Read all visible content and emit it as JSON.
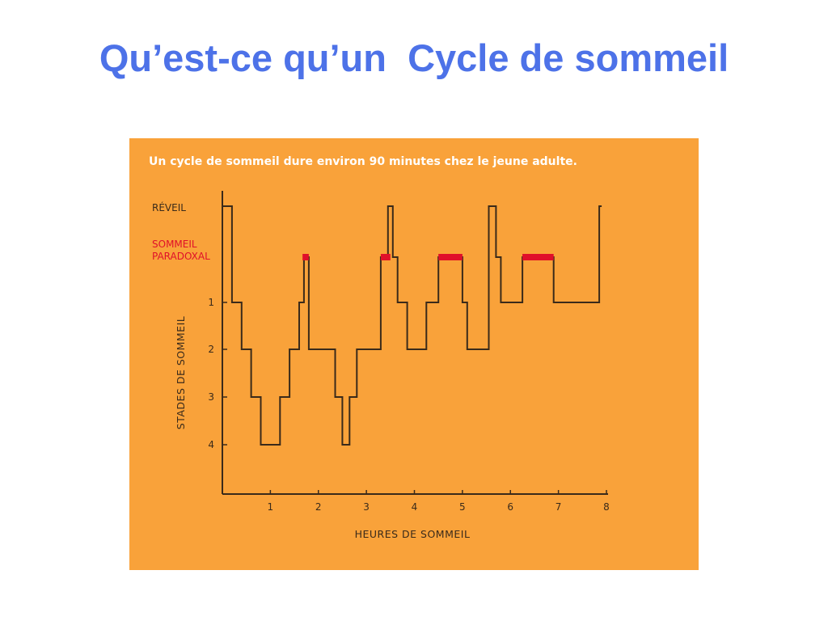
{
  "slide": {
    "title": "Qu’est-ce qu’un  Cycle de sommeil"
  },
  "colors": {
    "title": "#4d72e8",
    "panel_background": "#f9a23a",
    "line": "#3a2a1a",
    "paradoxical": "#e0102a"
  },
  "chart_data": {
    "type": "line",
    "caption": "Un cycle de sommeil dure environ 90 minutes chez le jeune adulte.",
    "xlabel": "HEURES DE SOMMEIL",
    "ylabel": "STADES DE SOMMEIL",
    "xlim": [
      0,
      8
    ],
    "x_ticks": [
      "1",
      "2",
      "3",
      "4",
      "5",
      "6",
      "7",
      "8"
    ],
    "y_levels": [
      {
        "key": "W",
        "label": "RÉVEIL"
      },
      {
        "key": "P",
        "label": "SOMMEIL PARADOXAL"
      },
      {
        "key": "1",
        "label": "1"
      },
      {
        "key": "2",
        "label": "2"
      },
      {
        "key": "3",
        "label": "3"
      },
      {
        "key": "4",
        "label": "4"
      }
    ],
    "y_tick_labels": [
      "1",
      "2",
      "3",
      "4"
    ],
    "level_labels": {
      "wake": "RÉVEIL",
      "paradoxical_line1": "SOMMEIL",
      "paradoxical_line2": "PARADOXAL"
    },
    "series": [
      {
        "hypnogram": [
          [
            0.0,
            "W"
          ],
          [
            0.2,
            "1"
          ],
          [
            0.4,
            "2"
          ],
          [
            0.6,
            "3"
          ],
          [
            0.8,
            "4"
          ],
          [
            1.2,
            "3"
          ],
          [
            1.4,
            "2"
          ],
          [
            1.6,
            "1"
          ],
          [
            1.7,
            "P"
          ],
          [
            1.8,
            "2"
          ],
          [
            2.35,
            "3"
          ],
          [
            2.5,
            "4"
          ],
          [
            2.65,
            "3"
          ],
          [
            2.8,
            "2"
          ],
          [
            3.3,
            "P"
          ],
          [
            3.45,
            "W"
          ],
          [
            3.55,
            "P"
          ],
          [
            3.65,
            "1"
          ],
          [
            3.85,
            "2"
          ],
          [
            4.25,
            "1"
          ],
          [
            4.5,
            "P"
          ],
          [
            5.0,
            "1"
          ],
          [
            5.1,
            "2"
          ],
          [
            5.55,
            "W"
          ],
          [
            5.7,
            "P"
          ],
          [
            5.8,
            "1"
          ],
          [
            6.25,
            "P"
          ],
          [
            6.9,
            "1"
          ],
          [
            7.85,
            "W"
          ],
          [
            7.9,
            "W"
          ]
        ]
      }
    ],
    "paradoxical_segments": [
      [
        1.67,
        1.8
      ],
      [
        3.3,
        3.5
      ],
      [
        4.5,
        5.0
      ],
      [
        6.25,
        6.9
      ]
    ]
  }
}
